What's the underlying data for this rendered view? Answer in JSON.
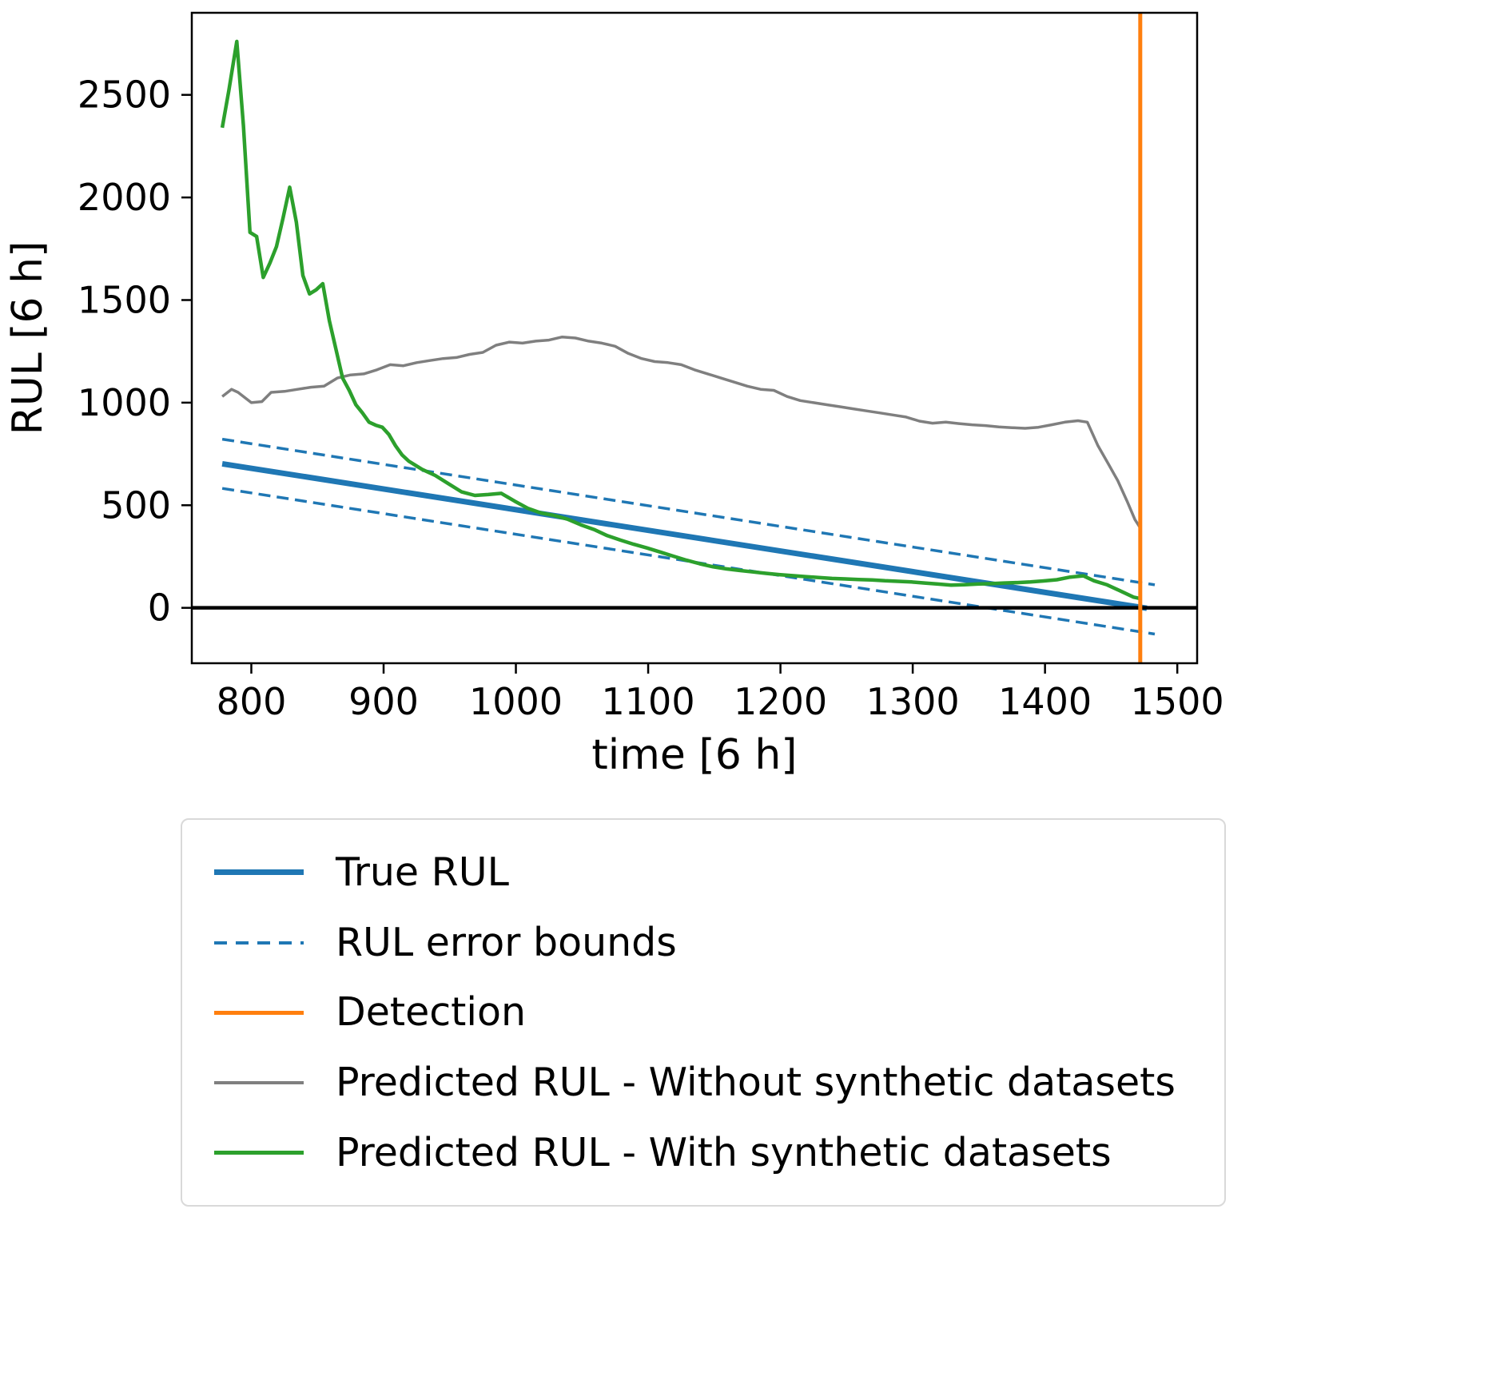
{
  "chart_data": {
    "type": "line",
    "title": "",
    "xlabel": "time [6 h]",
    "ylabel": "RUL [6 h]",
    "xlim": [
      755,
      1515
    ],
    "ylim": [
      -270,
      2900
    ],
    "xticks": [
      800,
      900,
      1000,
      1100,
      1200,
      1300,
      1400,
      1500
    ],
    "yticks": [
      0,
      500,
      1000,
      1500,
      2000,
      2500
    ],
    "grid": false,
    "legend_position": "below",
    "axhline": {
      "y": 0,
      "color": "#000000",
      "width": 4.5
    },
    "detection": {
      "x": 1472,
      "color": "#ff7f0e",
      "width": 5
    },
    "series": [
      {
        "id": "true-rul",
        "name": "True RUL",
        "color": "#1f77b4",
        "width": 7,
        "dash": null,
        "points": [
          [
            778,
            702
          ],
          [
            1477,
            -2
          ]
        ]
      },
      {
        "id": "rul-error-bound-upper",
        "name": "RUL error bounds",
        "color": "#1f77b4",
        "width": 3.5,
        "dash": "15 8",
        "points": [
          [
            778,
            822
          ],
          [
            1483,
            112
          ]
        ]
      },
      {
        "id": "rul-error-bound-lower",
        "name": "RUL error bounds",
        "color": "#1f77b4",
        "width": 3.5,
        "dash": "15 8",
        "points": [
          [
            778,
            582
          ],
          [
            1483,
            -128
          ]
        ]
      },
      {
        "id": "predicted-without-synthetic",
        "name": "Predicted RUL - Without synthetic datasets",
        "color": "#7f7f7f",
        "width": 3.5,
        "dash": null,
        "points": [
          [
            778,
            1030
          ],
          [
            785,
            1065
          ],
          [
            790,
            1050
          ],
          [
            800,
            1000
          ],
          [
            808,
            1005
          ],
          [
            815,
            1050
          ],
          [
            825,
            1055
          ],
          [
            835,
            1065
          ],
          [
            845,
            1075
          ],
          [
            855,
            1080
          ],
          [
            865,
            1120
          ],
          [
            875,
            1135
          ],
          [
            885,
            1140
          ],
          [
            895,
            1160
          ],
          [
            905,
            1185
          ],
          [
            915,
            1180
          ],
          [
            925,
            1195
          ],
          [
            935,
            1205
          ],
          [
            945,
            1215
          ],
          [
            955,
            1220
          ],
          [
            965,
            1235
          ],
          [
            975,
            1245
          ],
          [
            985,
            1280
          ],
          [
            995,
            1295
          ],
          [
            1005,
            1290
          ],
          [
            1015,
            1300
          ],
          [
            1025,
            1305
          ],
          [
            1035,
            1320
          ],
          [
            1045,
            1315
          ],
          [
            1055,
            1300
          ],
          [
            1065,
            1290
          ],
          [
            1075,
            1275
          ],
          [
            1085,
            1240
          ],
          [
            1095,
            1215
          ],
          [
            1105,
            1200
          ],
          [
            1115,
            1195
          ],
          [
            1125,
            1185
          ],
          [
            1135,
            1160
          ],
          [
            1145,
            1140
          ],
          [
            1155,
            1120
          ],
          [
            1165,
            1100
          ],
          [
            1175,
            1080
          ],
          [
            1185,
            1065
          ],
          [
            1195,
            1060
          ],
          [
            1205,
            1030
          ],
          [
            1215,
            1010
          ],
          [
            1225,
            1000
          ],
          [
            1235,
            990
          ],
          [
            1245,
            980
          ],
          [
            1255,
            970
          ],
          [
            1265,
            960
          ],
          [
            1275,
            950
          ],
          [
            1285,
            940
          ],
          [
            1295,
            930
          ],
          [
            1305,
            910
          ],
          [
            1315,
            900
          ],
          [
            1325,
            905
          ],
          [
            1335,
            898
          ],
          [
            1345,
            892
          ],
          [
            1355,
            888
          ],
          [
            1365,
            882
          ],
          [
            1375,
            878
          ],
          [
            1385,
            875
          ],
          [
            1395,
            880
          ],
          [
            1405,
            892
          ],
          [
            1415,
            905
          ],
          [
            1425,
            912
          ],
          [
            1432,
            905
          ],
          [
            1440,
            790
          ],
          [
            1448,
            700
          ],
          [
            1455,
            620
          ],
          [
            1462,
            520
          ],
          [
            1468,
            430
          ],
          [
            1472,
            390
          ]
        ]
      },
      {
        "id": "predicted-with-synthetic",
        "name": "Predicted RUL - With synthetic datasets",
        "color": "#2ca02c",
        "width": 4.5,
        "dash": null,
        "points": [
          [
            778,
            2340
          ],
          [
            783,
            2520
          ],
          [
            789,
            2760
          ],
          [
            794,
            2350
          ],
          [
            799,
            1830
          ],
          [
            804,
            1810
          ],
          [
            809,
            1610
          ],
          [
            814,
            1680
          ],
          [
            819,
            1760
          ],
          [
            824,
            1900
          ],
          [
            829,
            2050
          ],
          [
            834,
            1880
          ],
          [
            839,
            1620
          ],
          [
            844,
            1530
          ],
          [
            849,
            1550
          ],
          [
            854,
            1580
          ],
          [
            859,
            1400
          ],
          [
            864,
            1260
          ],
          [
            869,
            1120
          ],
          [
            874,
            1060
          ],
          [
            879,
            990
          ],
          [
            884,
            950
          ],
          [
            889,
            905
          ],
          [
            894,
            890
          ],
          [
            899,
            880
          ],
          [
            904,
            845
          ],
          [
            909,
            790
          ],
          [
            914,
            745
          ],
          [
            919,
            715
          ],
          [
            924,
            695
          ],
          [
            929,
            675
          ],
          [
            939,
            645
          ],
          [
            949,
            605
          ],
          [
            959,
            565
          ],
          [
            969,
            548
          ],
          [
            979,
            552
          ],
          [
            989,
            558
          ],
          [
            999,
            520
          ],
          [
            1009,
            485
          ],
          [
            1019,
            462
          ],
          [
            1029,
            450
          ],
          [
            1039,
            432
          ],
          [
            1049,
            405
          ],
          [
            1059,
            382
          ],
          [
            1069,
            352
          ],
          [
            1079,
            330
          ],
          [
            1089,
            310
          ],
          [
            1099,
            292
          ],
          [
            1109,
            272
          ],
          [
            1119,
            252
          ],
          [
            1129,
            232
          ],
          [
            1139,
            215
          ],
          [
            1149,
            200
          ],
          [
            1159,
            190
          ],
          [
            1169,
            182
          ],
          [
            1179,
            175
          ],
          [
            1189,
            168
          ],
          [
            1199,
            162
          ],
          [
            1209,
            157
          ],
          [
            1219,
            152
          ],
          [
            1229,
            148
          ],
          [
            1239,
            143
          ],
          [
            1249,
            141
          ],
          [
            1259,
            138
          ],
          [
            1269,
            136
          ],
          [
            1279,
            132
          ],
          [
            1289,
            129
          ],
          [
            1299,
            126
          ],
          [
            1309,
            121
          ],
          [
            1319,
            116
          ],
          [
            1329,
            111
          ],
          [
            1339,
            113
          ],
          [
            1349,
            116
          ],
          [
            1359,
            118
          ],
          [
            1369,
            121
          ],
          [
            1379,
            123
          ],
          [
            1389,
            126
          ],
          [
            1399,
            131
          ],
          [
            1409,
            137
          ],
          [
            1419,
            150
          ],
          [
            1429,
            156
          ],
          [
            1437,
            132
          ],
          [
            1447,
            112
          ],
          [
            1457,
            82
          ],
          [
            1467,
            52
          ],
          [
            1472,
            45
          ]
        ]
      }
    ],
    "legend": [
      {
        "label": "True RUL",
        "color": "#1f77b4",
        "style": "solid",
        "width": 7
      },
      {
        "label": "RUL error bounds",
        "color": "#1f77b4",
        "style": "dashed",
        "width": 4
      },
      {
        "label": "Detection",
        "color": "#ff7f0e",
        "style": "solid",
        "width": 5
      },
      {
        "label": "Predicted RUL - Without synthetic datasets",
        "color": "#7f7f7f",
        "style": "solid",
        "width": 4
      },
      {
        "label": "Predicted RUL - With synthetic datasets",
        "color": "#2ca02c",
        "style": "solid",
        "width": 5
      }
    ]
  }
}
